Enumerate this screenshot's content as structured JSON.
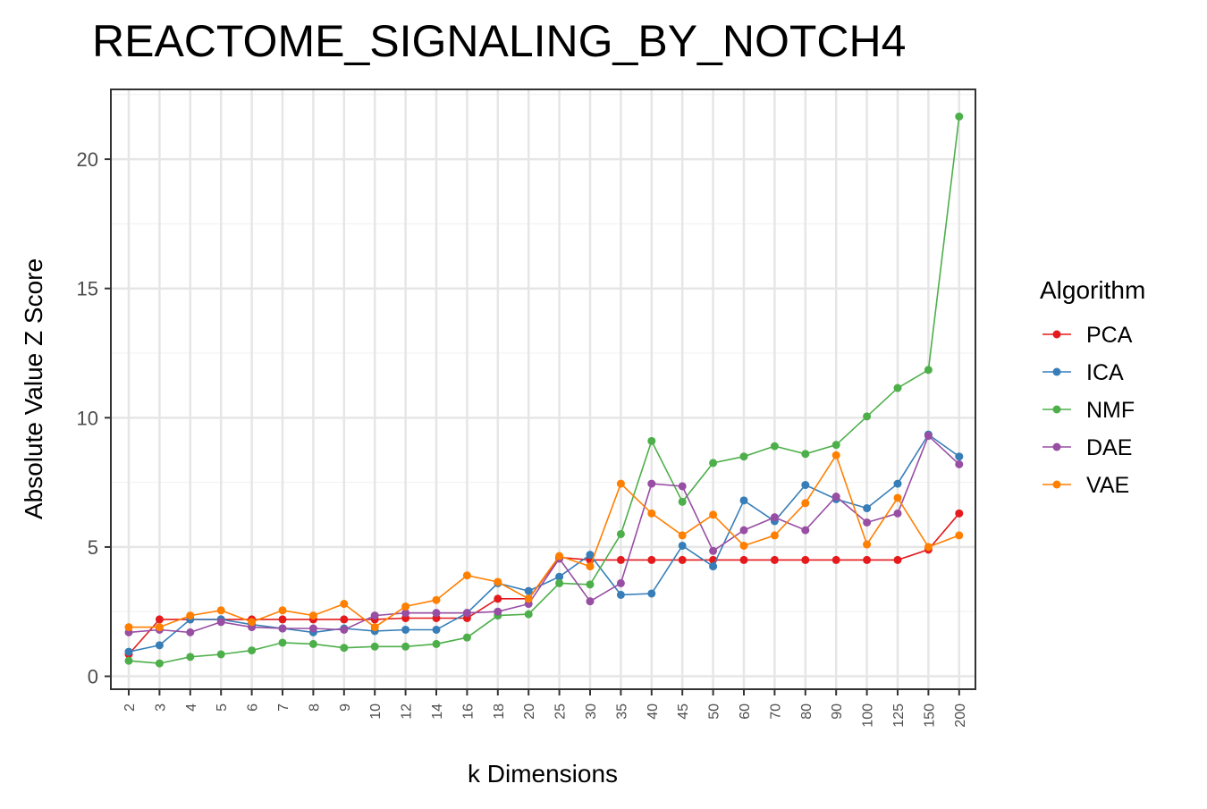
{
  "chart_data": {
    "type": "line",
    "title": "REACTOME_SIGNALING_BY_NOTCH4",
    "xlabel": "k Dimensions",
    "ylabel": "Absolute Value Z Score",
    "categories": [
      "2",
      "3",
      "4",
      "5",
      "6",
      "7",
      "8",
      "9",
      "10",
      "12",
      "14",
      "16",
      "18",
      "20",
      "25",
      "30",
      "35",
      "40",
      "45",
      "50",
      "60",
      "70",
      "80",
      "90",
      "100",
      "125",
      "150",
      "200"
    ],
    "yticks": [
      0,
      5,
      10,
      15,
      20
    ],
    "ylim": [
      -0.5,
      22.7
    ],
    "grid": true,
    "legend": {
      "title": "Algorithm",
      "placement": "right"
    },
    "series": [
      {
        "name": "PCA",
        "color": "#e41a1c",
        "values": [
          0.85,
          2.2,
          2.2,
          2.2,
          2.2,
          2.2,
          2.2,
          2.2,
          2.2,
          2.25,
          2.25,
          2.25,
          3.0,
          3.0,
          4.6,
          4.5,
          4.5,
          4.5,
          4.5,
          4.5,
          4.5,
          4.5,
          4.5,
          4.5,
          4.5,
          4.5,
          4.9,
          6.3
        ]
      },
      {
        "name": "ICA",
        "color": "#377eb8",
        "values": [
          0.95,
          1.2,
          2.2,
          2.2,
          2.0,
          1.85,
          1.7,
          1.85,
          1.75,
          1.8,
          1.8,
          2.45,
          3.6,
          3.3,
          3.85,
          4.7,
          3.15,
          3.2,
          5.05,
          4.25,
          6.8,
          6.0,
          7.4,
          6.85,
          6.5,
          7.45,
          9.35,
          8.5
        ]
      },
      {
        "name": "NMF",
        "color": "#4daf4a",
        "values": [
          0.6,
          0.5,
          0.75,
          0.85,
          1.0,
          1.3,
          1.25,
          1.1,
          1.15,
          1.15,
          1.25,
          1.5,
          2.35,
          2.4,
          3.6,
          3.55,
          5.5,
          9.1,
          6.75,
          8.25,
          8.5,
          8.9,
          8.6,
          8.95,
          10.05,
          11.15,
          11.85,
          21.65
        ]
      },
      {
        "name": "DAE",
        "color": "#984ea3",
        "values": [
          1.7,
          1.8,
          1.7,
          2.1,
          1.9,
          1.85,
          1.85,
          1.8,
          2.35,
          2.45,
          2.45,
          2.45,
          2.5,
          2.8,
          4.55,
          2.9,
          3.6,
          7.45,
          7.35,
          4.85,
          5.65,
          6.15,
          5.65,
          6.95,
          5.95,
          6.3,
          9.3,
          8.2
        ]
      },
      {
        "name": "VAE",
        "color": "#ff7f00",
        "values": [
          1.9,
          1.9,
          2.35,
          2.55,
          2.1,
          2.55,
          2.35,
          2.8,
          1.9,
          2.7,
          2.95,
          3.9,
          3.65,
          3.0,
          4.65,
          4.25,
          7.45,
          6.3,
          5.45,
          6.25,
          5.05,
          5.45,
          6.7,
          8.55,
          5.1,
          6.9,
          5.0,
          5.45
        ]
      }
    ]
  }
}
